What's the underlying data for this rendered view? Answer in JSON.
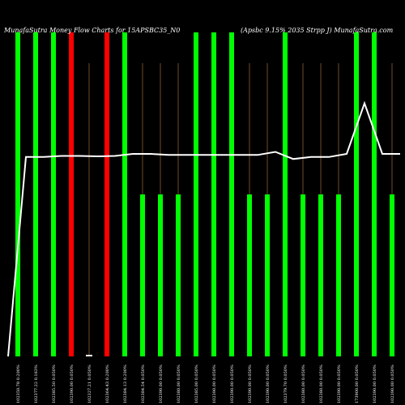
{
  "chart_data": {
    "type": "bar",
    "title_left": "MunafaSutra Money Flow  Charts for 15APSBC35_N0",
    "title_right": "(Apsbc 9.15% 2035 Strpp J) MunafaSutra.com",
    "categories": [
      "102350.78 0.200%",
      "102377.22 0.163%",
      "102385.50 0.050%",
      "102390.00 0.050%",
      "102327.21 0.050%",
      "102364.43 0.200%",
      "102384.13 0.200%",
      "102384.54 0.050%",
      "102390.00 0.050%",
      "102380.00 0.050%",
      "102385.00 0.050%",
      "102390.00 0.050%",
      "102390.00 0.050%",
      "102390.00 0.050%",
      "102390.00 0.050%",
      "102379.70 0.050%",
      "102380.00 0.050%",
      "102380.00 0.050%",
      "102390.00 0.050%",
      "173900.00 0.050%",
      "102390.00 0.050%",
      "102390.00 0.050%"
    ],
    "bar_levels": [
      1.0,
      1.0,
      1.0,
      1.0,
      0.0,
      1.0,
      1.0,
      0.5,
      0.5,
      0.5,
      1.0,
      1.0,
      1.0,
      0.5,
      0.5,
      1.0,
      0.5,
      0.5,
      0.5,
      1.0,
      1.0,
      0.5
    ],
    "bar_colors": [
      "green",
      "green",
      "green",
      "red",
      "white",
      "red",
      "green",
      "green",
      "green",
      "green",
      "green",
      "green",
      "green",
      "green",
      "green",
      "green",
      "green",
      "green",
      "green",
      "green",
      "green",
      "green"
    ],
    "price_line": [
      0.0,
      0.985,
      0.985,
      0.99,
      0.99,
      0.988,
      0.99,
      1.0,
      1.0,
      0.995,
      0.995,
      0.995,
      0.995,
      0.995,
      0.995,
      1.01,
      0.975,
      0.985,
      0.985,
      1.0,
      1.25,
      1.0,
      1.0
    ],
    "colors": {
      "background": "#000000",
      "green": "#00ff00",
      "red": "#ff0000",
      "white": "#ffffff",
      "line": "#ffffff",
      "grid": "#c08040"
    }
  }
}
